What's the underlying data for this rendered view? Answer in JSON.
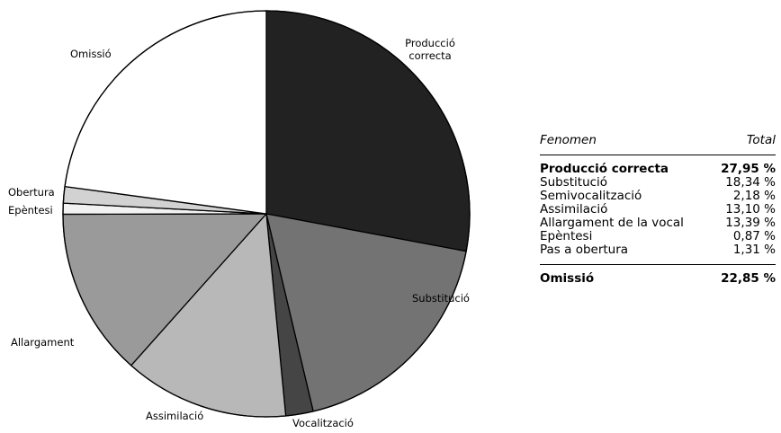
{
  "chart_data": {
    "type": "pie",
    "slices": [
      {
        "label": "Producció correcta",
        "value": 27.95,
        "color": "#222222"
      },
      {
        "label": "Substitució",
        "value": 18.34,
        "color": "#737373"
      },
      {
        "label": "Vocalització",
        "value": 2.18,
        "color": "#454545"
      },
      {
        "label": "Assimilació",
        "value": 13.1,
        "color": "#b8b8b8"
      },
      {
        "label": "Allargament",
        "value": 13.39,
        "color": "#9a9a9a"
      },
      {
        "label": "Epèntesi",
        "value": 0.87,
        "color": "#f2f2f2"
      },
      {
        "label": "Obertura",
        "value": 1.31,
        "color": "#d2d2d2"
      },
      {
        "label": "Omissió",
        "value": 22.85,
        "color": "#ffffff"
      }
    ],
    "start_angle": "12 o'clock",
    "direction": "clockwise"
  },
  "table": {
    "header": {
      "fenomen": "Fenomen",
      "total": "Total"
    },
    "rows": [
      {
        "fenomen": "Producció correcta",
        "total": "27,95 %",
        "bold": true
      },
      {
        "fenomen": "Substitució",
        "total": "18,34 %"
      },
      {
        "fenomen": "Semivocalització",
        "total": "2,18 %"
      },
      {
        "fenomen": "Assimilació",
        "total": "13,10 %"
      },
      {
        "fenomen": "Allargament de la vocal",
        "total": "13,39 %"
      },
      {
        "fenomen": "Epèntesi",
        "total": "0,87 %"
      },
      {
        "fenomen": "Pas a obertura",
        "total": "1,31 %"
      }
    ],
    "footer": {
      "fenomen": "Omissió",
      "total": "22,85 %"
    }
  }
}
